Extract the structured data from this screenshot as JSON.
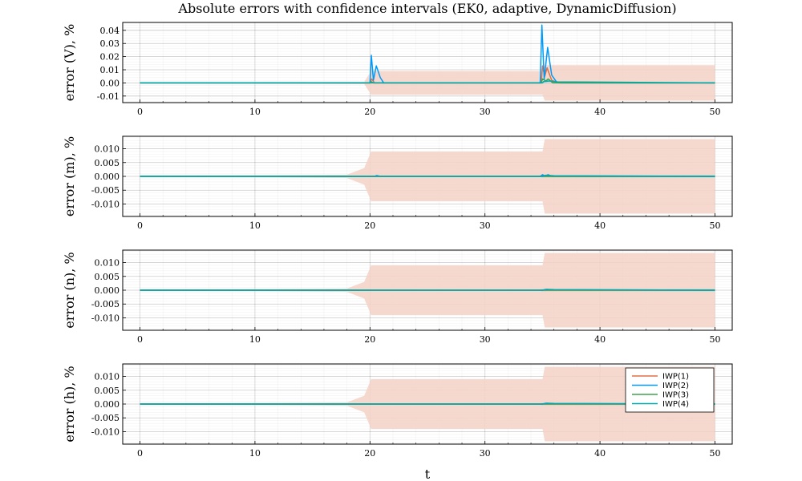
{
  "chart_data": {
    "type": "line",
    "title": "Absolute errors with confidence intervals (EK0, adaptive, DynamicDiffusion)",
    "xlabel": "t",
    "xlim": [
      -1.5,
      51.5
    ],
    "xticks": [
      0,
      10,
      20,
      30,
      40,
      50
    ],
    "grid": true,
    "legend_position": "top-right",
    "colors": {
      "IWP(1)": "#e26f46",
      "IWP(2)": "#009af9",
      "IWP(3)": "#3da44d",
      "IWP(4)": "#00a9ad",
      "band": "#f4d2c6",
      "band_inner": "#9ecfe0"
    },
    "legend": [
      "IWP(1)",
      "IWP(2)",
      "IWP(3)",
      "IWP(4)"
    ],
    "subplots": [
      {
        "ylabel": "error  (V), %",
        "ylim": [
          -0.015,
          0.046
        ],
        "yticks": [
          -0.01,
          0.0,
          0.01,
          0.02,
          0.03,
          0.04
        ],
        "ytick_labels": [
          "-0.01",
          "0.00",
          "0.01",
          "0.02",
          "0.03",
          "0.04"
        ],
        "band": [
          [
            0,
            0.0003
          ],
          [
            19.5,
            0.0008
          ],
          [
            20.1,
            0.009
          ],
          [
            35.0,
            0.009
          ],
          [
            35.2,
            0.0135
          ],
          [
            50,
            0.0135
          ]
        ],
        "series": [
          {
            "name": "IWP(1)",
            "points": [
              [
                0,
                0
              ],
              [
                20,
                0
              ],
              [
                20.15,
                0.003
              ],
              [
                20.4,
                0
              ],
              [
                34.9,
                0
              ],
              [
                35.0,
                0.013
              ],
              [
                35.2,
                0.005
              ],
              [
                35.4,
                0.0115
              ],
              [
                35.8,
                0.002
              ],
              [
                36.4,
                0
              ],
              [
                50,
                0
              ]
            ]
          },
          {
            "name": "IWP(2)",
            "points": [
              [
                0,
                0
              ],
              [
                20,
                0
              ],
              [
                20.12,
                0.021
              ],
              [
                20.3,
                0.002
              ],
              [
                20.55,
                0.013
              ],
              [
                20.9,
                0.004
              ],
              [
                21.2,
                0
              ],
              [
                34.8,
                0
              ],
              [
                34.95,
                0.044
              ],
              [
                35.15,
                0.003
              ],
              [
                35.45,
                0.027
              ],
              [
                35.8,
                0.006
              ],
              [
                36.2,
                0.001
              ],
              [
                36.6,
                0
              ],
              [
                50,
                0
              ]
            ]
          },
          {
            "name": "IWP(3)",
            "points": [
              [
                0,
                0
              ],
              [
                20,
                0
              ],
              [
                20.1,
                0.001
              ],
              [
                20.3,
                0
              ],
              [
                34.9,
                0
              ],
              [
                35.0,
                0.003
              ],
              [
                35.3,
                0.0015
              ],
              [
                35.5,
                0.003
              ],
              [
                35.9,
                0
              ],
              [
                50,
                0
              ]
            ]
          },
          {
            "name": "IWP(4)",
            "points": [
              [
                0,
                0
              ],
              [
                35,
                0
              ],
              [
                35.1,
                0.001
              ],
              [
                35.6,
                0.0015
              ],
              [
                36.2,
                0.0008
              ],
              [
                50,
                0
              ]
            ]
          }
        ]
      },
      {
        "ylabel": "error  (m), %",
        "ylim": [
          -0.0145,
          0.0145
        ],
        "yticks": [
          -0.01,
          -0.005,
          0.0,
          0.005,
          0.01
        ],
        "ytick_labels": [
          "-0.010",
          "-0.005",
          "0.000",
          "0.005",
          "0.010"
        ],
        "band": [
          [
            0,
            0.0002
          ],
          [
            18,
            0.0006
          ],
          [
            19.5,
            0.003
          ],
          [
            20.1,
            0.009
          ],
          [
            35.0,
            0.009
          ],
          [
            35.2,
            0.0135
          ],
          [
            50,
            0.0135
          ]
        ],
        "series": [
          {
            "name": "IWP(1)",
            "points": [
              [
                0,
                0
              ],
              [
                50,
                0
              ]
            ]
          },
          {
            "name": "IWP(2)",
            "points": [
              [
                0,
                0
              ],
              [
                20.4,
                0
              ],
              [
                20.6,
                0.0003
              ],
              [
                20.9,
                0
              ],
              [
                34.8,
                0
              ],
              [
                35.0,
                0.0006
              ],
              [
                35.2,
                0.0002
              ],
              [
                35.5,
                0.0006
              ],
              [
                35.8,
                0
              ],
              [
                50,
                0
              ]
            ]
          },
          {
            "name": "IWP(3)",
            "points": [
              [
                0,
                0
              ],
              [
                50,
                0
              ]
            ]
          },
          {
            "name": "IWP(4)",
            "points": [
              [
                0,
                0
              ],
              [
                35,
                0
              ],
              [
                35.3,
                0.0004
              ],
              [
                36,
                0.0002
              ],
              [
                50,
                0
              ]
            ]
          }
        ]
      },
      {
        "ylabel": "error  (n), %",
        "ylim": [
          -0.0145,
          0.0145
        ],
        "yticks": [
          -0.01,
          -0.005,
          0.0,
          0.005,
          0.01
        ],
        "ytick_labels": [
          "-0.010",
          "-0.005",
          "0.000",
          "0.005",
          "0.010"
        ],
        "band": [
          [
            0,
            0.0002
          ],
          [
            18,
            0.0006
          ],
          [
            19.5,
            0.003
          ],
          [
            20.1,
            0.009
          ],
          [
            35.0,
            0.009
          ],
          [
            35.2,
            0.0135
          ],
          [
            50,
            0.0135
          ]
        ],
        "series": [
          {
            "name": "IWP(1)",
            "points": [
              [
                0,
                0
              ],
              [
                50,
                0
              ]
            ]
          },
          {
            "name": "IWP(2)",
            "points": [
              [
                0,
                0
              ],
              [
                35,
                0
              ],
              [
                35.3,
                0.0003
              ],
              [
                36,
                0.0001
              ],
              [
                50,
                0
              ]
            ]
          },
          {
            "name": "IWP(3)",
            "points": [
              [
                0,
                0
              ],
              [
                50,
                0
              ]
            ]
          },
          {
            "name": "IWP(4)",
            "points": [
              [
                0,
                0
              ],
              [
                35,
                0
              ],
              [
                35.4,
                0.0003
              ],
              [
                36,
                0.0002
              ],
              [
                50,
                0
              ]
            ]
          }
        ]
      },
      {
        "ylabel": "error  (h), %",
        "ylim": [
          -0.0145,
          0.0145
        ],
        "yticks": [
          -0.01,
          -0.005,
          0.0,
          0.005,
          0.01
        ],
        "ytick_labels": [
          "-0.010",
          "-0.005",
          "0.000",
          "0.005",
          "0.010"
        ],
        "band": [
          [
            0,
            0.0002
          ],
          [
            18,
            0.0006
          ],
          [
            19.5,
            0.003
          ],
          [
            20.1,
            0.009
          ],
          [
            35.0,
            0.009
          ],
          [
            35.2,
            0.0135
          ],
          [
            50,
            0.0135
          ]
        ],
        "series": [
          {
            "name": "IWP(1)",
            "points": [
              [
                0,
                0
              ],
              [
                50,
                0
              ]
            ]
          },
          {
            "name": "IWP(2)",
            "points": [
              [
                0,
                0
              ],
              [
                35,
                0
              ],
              [
                35.3,
                0.0003
              ],
              [
                36,
                0.0001
              ],
              [
                50,
                0
              ]
            ]
          },
          {
            "name": "IWP(3)",
            "points": [
              [
                0,
                0
              ],
              [
                50,
                0
              ]
            ]
          },
          {
            "name": "IWP(4)",
            "points": [
              [
                0,
                0
              ],
              [
                35,
                0
              ],
              [
                35.4,
                0.0003
              ],
              [
                36,
                0.0002
              ],
              [
                50,
                0
              ]
            ]
          }
        ]
      }
    ]
  }
}
